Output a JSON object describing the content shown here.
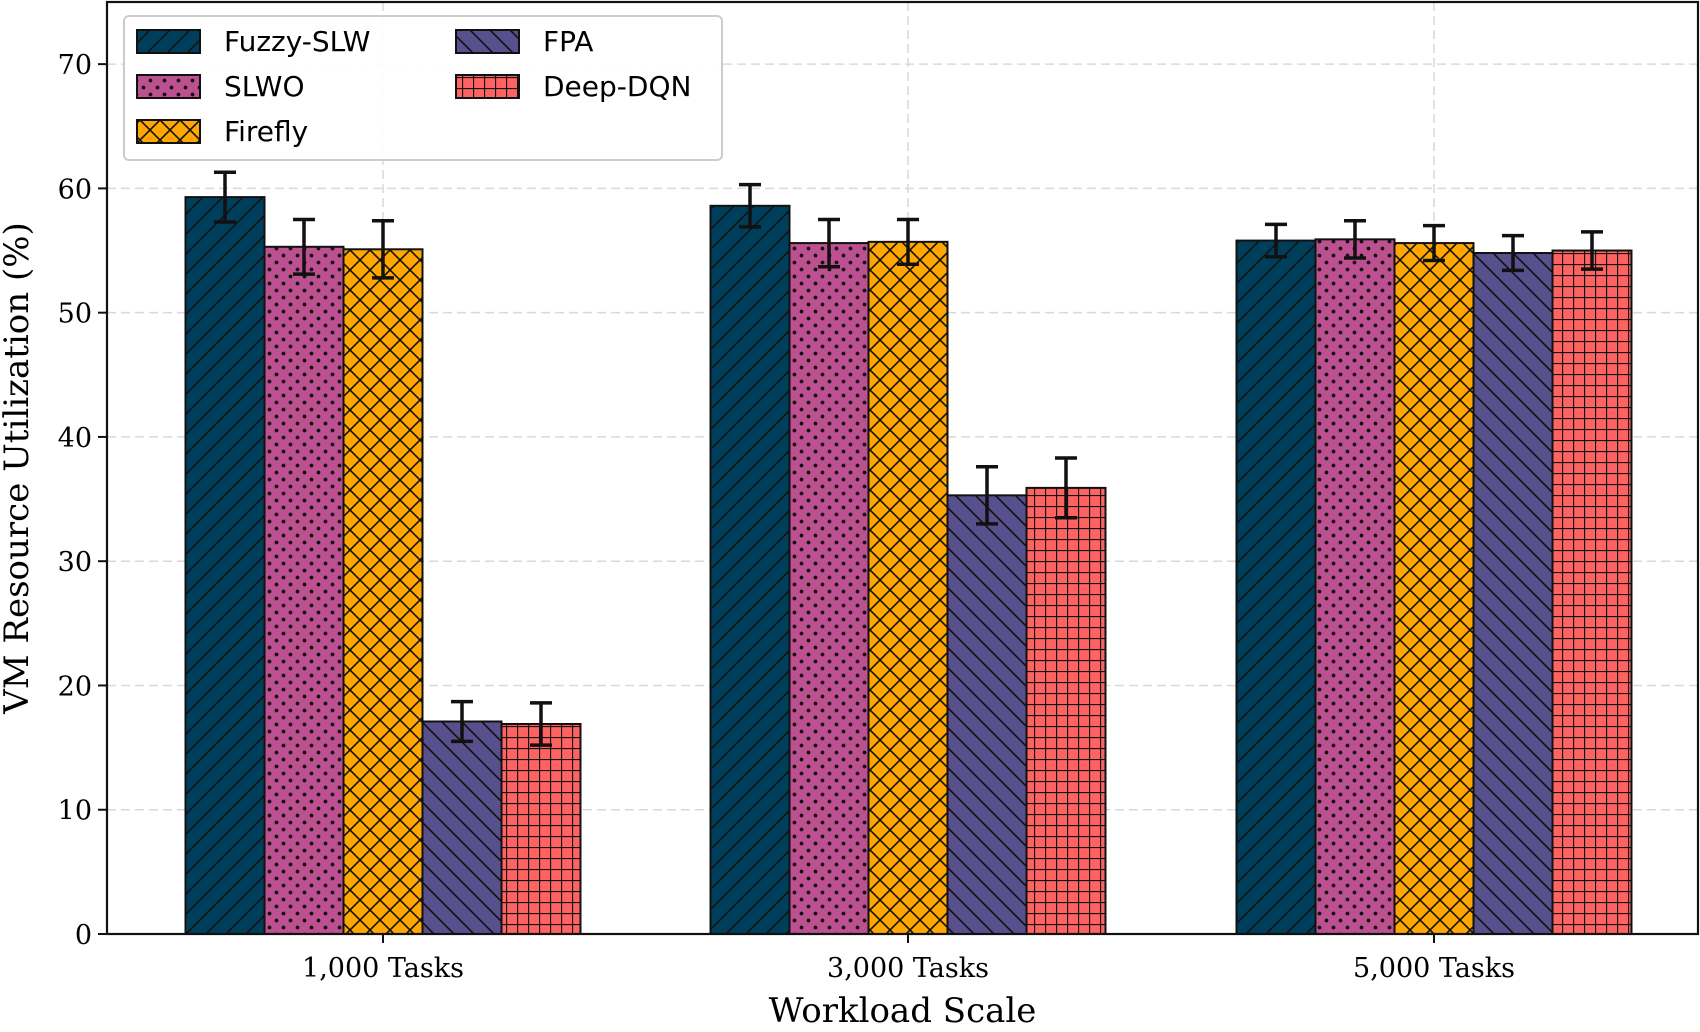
{
  "chart_data": {
    "type": "bar",
    "xlabel": "Workload Scale",
    "ylabel": "VM Resource Utilization (%)",
    "ylim": [
      0,
      75
    ],
    "yticks": [
      0,
      10,
      20,
      30,
      40,
      50,
      60,
      70
    ],
    "grid": true,
    "legend_position": "top-left",
    "categories": [
      "1,000 Tasks",
      "3,000 Tasks",
      "5,000 Tasks"
    ],
    "series": [
      {
        "name": "Fuzzy-SLW",
        "color": "#003f5c",
        "hatch": "diagonal-forward",
        "values": [
          59.3,
          58.6,
          55.8
        ],
        "errors": [
          2.0,
          1.7,
          1.3
        ]
      },
      {
        "name": "SLWO",
        "color": "#bc5090",
        "hatch": "dots",
        "values": [
          55.3,
          55.6,
          55.9
        ],
        "errors": [
          2.2,
          1.9,
          1.5
        ]
      },
      {
        "name": "Firefly",
        "color": "#ffa600",
        "hatch": "cross-diagonal",
        "values": [
          55.1,
          55.7,
          55.6
        ],
        "errors": [
          2.3,
          1.8,
          1.4
        ]
      },
      {
        "name": "FPA",
        "color": "#58508d",
        "hatch": "diagonal-back",
        "values": [
          17.1,
          35.3,
          54.8
        ],
        "errors": [
          1.6,
          2.3,
          1.4
        ]
      },
      {
        "name": "Deep-DQN",
        "color": "#ff6361",
        "hatch": "grid",
        "values": [
          16.9,
          35.9,
          55.0
        ],
        "errors": [
          1.7,
          2.4,
          1.5
        ]
      }
    ]
  }
}
